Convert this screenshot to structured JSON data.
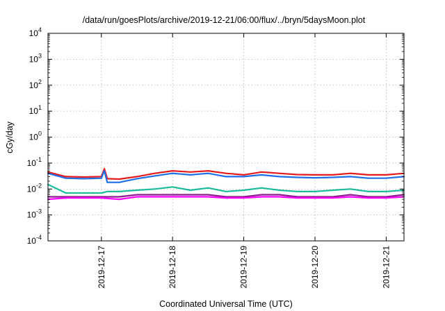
{
  "chart_data": {
    "type": "line",
    "title": "/data/run/goesPlots/archive/2019-12-21/06:00/flux/../bryn/5daysMoon.plot",
    "xlabel": "Coordinated Universal Time (UTC)",
    "ylabel": "cGy/day",
    "yscale": "log",
    "ylim": [
      0.0001,
      10000
    ],
    "xlim": [
      "2019-12-16T06:00",
      "2019-12-21T06:00"
    ],
    "grid": true,
    "y_ticks": [
      {
        "value": 0.0001,
        "base": "10",
        "exp": "-4"
      },
      {
        "value": 0.001,
        "base": "10",
        "exp": "-3"
      },
      {
        "value": 0.01,
        "base": "10",
        "exp": "-2"
      },
      {
        "value": 0.1,
        "base": "10",
        "exp": "-1"
      },
      {
        "value": 1,
        "base": "10",
        "exp": "0"
      },
      {
        "value": 10,
        "base": "10",
        "exp": "1"
      },
      {
        "value": 100,
        "base": "10",
        "exp": "2"
      },
      {
        "value": 1000,
        "base": "10",
        "exp": "3"
      },
      {
        "value": 10000,
        "base": "10",
        "exp": "4"
      }
    ],
    "x_ticks": [
      {
        "value": "2019-12-17T00:00",
        "label": "2019-12-17"
      },
      {
        "value": "2019-12-18T00:00",
        "label": "2019-12-18"
      },
      {
        "value": "2019-12-19T00:00",
        "label": "2019-12-19"
      },
      {
        "value": "2019-12-20T00:00",
        "label": "2019-12-20"
      },
      {
        "value": "2019-12-21T00:00",
        "label": "2019-12-21"
      }
    ],
    "series": [
      {
        "color": "#e41a1c",
        "values": [
          [
            "2019-12-16T06:00",
            0.045
          ],
          [
            "2019-12-16T12:00",
            0.03
          ],
          [
            "2019-12-16T18:00",
            0.029
          ],
          [
            "2019-12-17T00:00",
            0.03
          ],
          [
            "2019-12-17T01:00",
            0.06
          ],
          [
            "2019-12-17T02:00",
            0.025
          ],
          [
            "2019-12-17T06:00",
            0.024
          ],
          [
            "2019-12-17T12:00",
            0.03
          ],
          [
            "2019-12-17T18:00",
            0.04
          ],
          [
            "2019-12-18T00:00",
            0.05
          ],
          [
            "2019-12-18T06:00",
            0.045
          ],
          [
            "2019-12-18T12:00",
            0.05
          ],
          [
            "2019-12-18T18:00",
            0.04
          ],
          [
            "2019-12-19T00:00",
            0.035
          ],
          [
            "2019-12-19T06:00",
            0.045
          ],
          [
            "2019-12-19T12:00",
            0.04
          ],
          [
            "2019-12-19T18:00",
            0.036
          ],
          [
            "2019-12-20T00:00",
            0.035
          ],
          [
            "2019-12-20T06:00",
            0.035
          ],
          [
            "2019-12-20T12:00",
            0.04
          ],
          [
            "2019-12-20T18:00",
            0.035
          ],
          [
            "2019-12-21T00:00",
            0.035
          ],
          [
            "2019-12-21T06:00",
            0.04
          ]
        ]
      },
      {
        "color": "#1e6fe8",
        "values": [
          [
            "2019-12-16T06:00",
            0.04
          ],
          [
            "2019-12-16T12:00",
            0.026
          ],
          [
            "2019-12-16T18:00",
            0.025
          ],
          [
            "2019-12-17T00:00",
            0.026
          ],
          [
            "2019-12-17T01:00",
            0.05
          ],
          [
            "2019-12-17T02:00",
            0.018
          ],
          [
            "2019-12-17T06:00",
            0.018
          ],
          [
            "2019-12-17T12:00",
            0.025
          ],
          [
            "2019-12-17T18:00",
            0.032
          ],
          [
            "2019-12-18T00:00",
            0.04
          ],
          [
            "2019-12-18T06:00",
            0.035
          ],
          [
            "2019-12-18T12:00",
            0.04
          ],
          [
            "2019-12-18T18:00",
            0.03
          ],
          [
            "2019-12-19T00:00",
            0.03
          ],
          [
            "2019-12-19T06:00",
            0.035
          ],
          [
            "2019-12-19T12:00",
            0.03
          ],
          [
            "2019-12-19T18:00",
            0.028
          ],
          [
            "2019-12-20T00:00",
            0.027
          ],
          [
            "2019-12-20T06:00",
            0.028
          ],
          [
            "2019-12-20T12:00",
            0.03
          ],
          [
            "2019-12-20T18:00",
            0.026
          ],
          [
            "2019-12-21T00:00",
            0.026
          ],
          [
            "2019-12-21T06:00",
            0.03
          ]
        ]
      },
      {
        "color": "#1abc9c",
        "values": [
          [
            "2019-12-16T06:00",
            0.015
          ],
          [
            "2019-12-16T12:00",
            0.007
          ],
          [
            "2019-12-16T18:00",
            0.007
          ],
          [
            "2019-12-17T00:00",
            0.007
          ],
          [
            "2019-12-17T02:00",
            0.008
          ],
          [
            "2019-12-17T06:00",
            0.008
          ],
          [
            "2019-12-17T12:00",
            0.009
          ],
          [
            "2019-12-17T18:00",
            0.01
          ],
          [
            "2019-12-18T00:00",
            0.012
          ],
          [
            "2019-12-18T06:00",
            0.009
          ],
          [
            "2019-12-18T12:00",
            0.011
          ],
          [
            "2019-12-18T18:00",
            0.008
          ],
          [
            "2019-12-19T00:00",
            0.009
          ],
          [
            "2019-12-19T06:00",
            0.011
          ],
          [
            "2019-12-19T12:00",
            0.009
          ],
          [
            "2019-12-19T18:00",
            0.008
          ],
          [
            "2019-12-20T00:00",
            0.008
          ],
          [
            "2019-12-20T06:00",
            0.009
          ],
          [
            "2019-12-20T12:00",
            0.01
          ],
          [
            "2019-12-20T18:00",
            0.008
          ],
          [
            "2019-12-21T00:00",
            0.008
          ],
          [
            "2019-12-21T06:00",
            0.009
          ]
        ]
      },
      {
        "color": "#8e1b8e",
        "values": [
          [
            "2019-12-16T06:00",
            0.005
          ],
          [
            "2019-12-16T12:00",
            0.005
          ],
          [
            "2019-12-16T18:00",
            0.005
          ],
          [
            "2019-12-17T00:00",
            0.005
          ],
          [
            "2019-12-17T06:00",
            0.005
          ],
          [
            "2019-12-17T12:00",
            0.006
          ],
          [
            "2019-12-17T18:00",
            0.006
          ],
          [
            "2019-12-18T00:00",
            0.006
          ],
          [
            "2019-12-18T06:00",
            0.006
          ],
          [
            "2019-12-18T12:00",
            0.006
          ],
          [
            "2019-12-18T18:00",
            0.005
          ],
          [
            "2019-12-19T00:00",
            0.005
          ],
          [
            "2019-12-19T06:00",
            0.006
          ],
          [
            "2019-12-19T12:00",
            0.006
          ],
          [
            "2019-12-19T18:00",
            0.005
          ],
          [
            "2019-12-20T00:00",
            0.005
          ],
          [
            "2019-12-20T06:00",
            0.005
          ],
          [
            "2019-12-20T12:00",
            0.006
          ],
          [
            "2019-12-20T18:00",
            0.005
          ],
          [
            "2019-12-21T00:00",
            0.005
          ],
          [
            "2019-12-21T06:00",
            0.006
          ]
        ]
      },
      {
        "color": "#ff00ff",
        "values": [
          [
            "2019-12-16T06:00",
            0.004
          ],
          [
            "2019-12-16T12:00",
            0.0045
          ],
          [
            "2019-12-16T18:00",
            0.0045
          ],
          [
            "2019-12-17T00:00",
            0.0045
          ],
          [
            "2019-12-17T06:00",
            0.004
          ],
          [
            "2019-12-17T12:00",
            0.005
          ],
          [
            "2019-12-17T18:00",
            0.005
          ],
          [
            "2019-12-18T00:00",
            0.005
          ],
          [
            "2019-12-18T06:00",
            0.005
          ],
          [
            "2019-12-18T12:00",
            0.005
          ],
          [
            "2019-12-18T18:00",
            0.0045
          ],
          [
            "2019-12-19T00:00",
            0.0045
          ],
          [
            "2019-12-19T06:00",
            0.005
          ],
          [
            "2019-12-19T12:00",
            0.005
          ],
          [
            "2019-12-19T18:00",
            0.0045
          ],
          [
            "2019-12-20T00:00",
            0.0045
          ],
          [
            "2019-12-20T06:00",
            0.0045
          ],
          [
            "2019-12-20T12:00",
            0.005
          ],
          [
            "2019-12-20T18:00",
            0.0045
          ],
          [
            "2019-12-21T00:00",
            0.0045
          ],
          [
            "2019-12-21T06:00",
            0.005
          ]
        ]
      }
    ]
  }
}
